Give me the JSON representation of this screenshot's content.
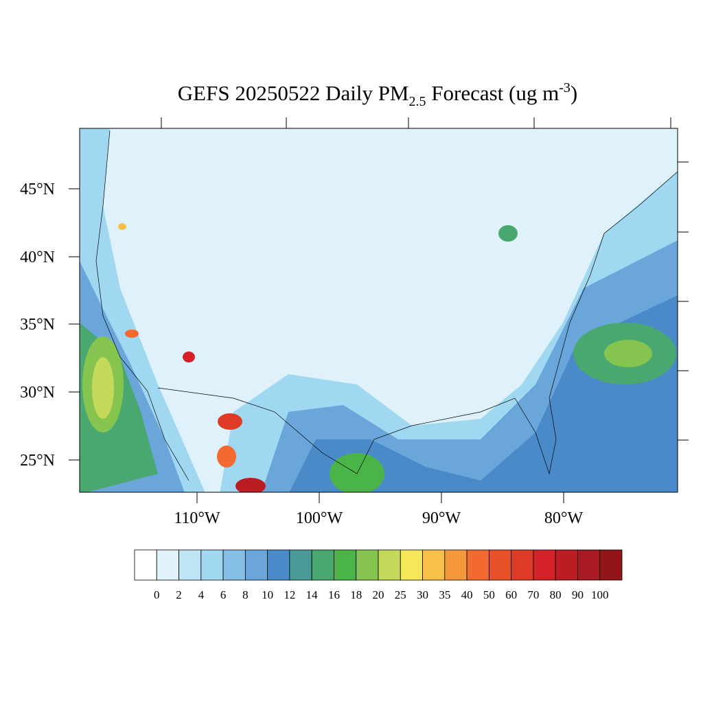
{
  "title": {
    "main": "GEFS 20250522 Daily PM",
    "sub": "2.5",
    "middle": " Forecast (ug m",
    "sup": "-3",
    "end": ")"
  },
  "lat_labels": [
    "45°N",
    "40°N",
    "35°N",
    "30°N",
    "25°N"
  ],
  "lon_labels": [
    "110°W",
    "100°W",
    "90°W",
    "80°W"
  ],
  "colorbar": {
    "levels": [
      0,
      2,
      4,
      6,
      8,
      10,
      12,
      14,
      16,
      18,
      20,
      25,
      30,
      35,
      40,
      50,
      60,
      70,
      80,
      90,
      100
    ],
    "colors": [
      "#ffffff",
      "#e0f3fb",
      "#bfe6f7",
      "#a0d8f2",
      "#86bfe6",
      "#6aa6da",
      "#4a8ac8",
      "#4a9a9a",
      "#48a870",
      "#4bb448",
      "#86c450",
      "#c4d85a",
      "#f6e75a",
      "#f8c04a",
      "#f5983c",
      "#f26a30",
      "#e8502a",
      "#de3a26",
      "#d42228",
      "#bc1c24",
      "#a81a22",
      "#921618"
    ]
  }
}
